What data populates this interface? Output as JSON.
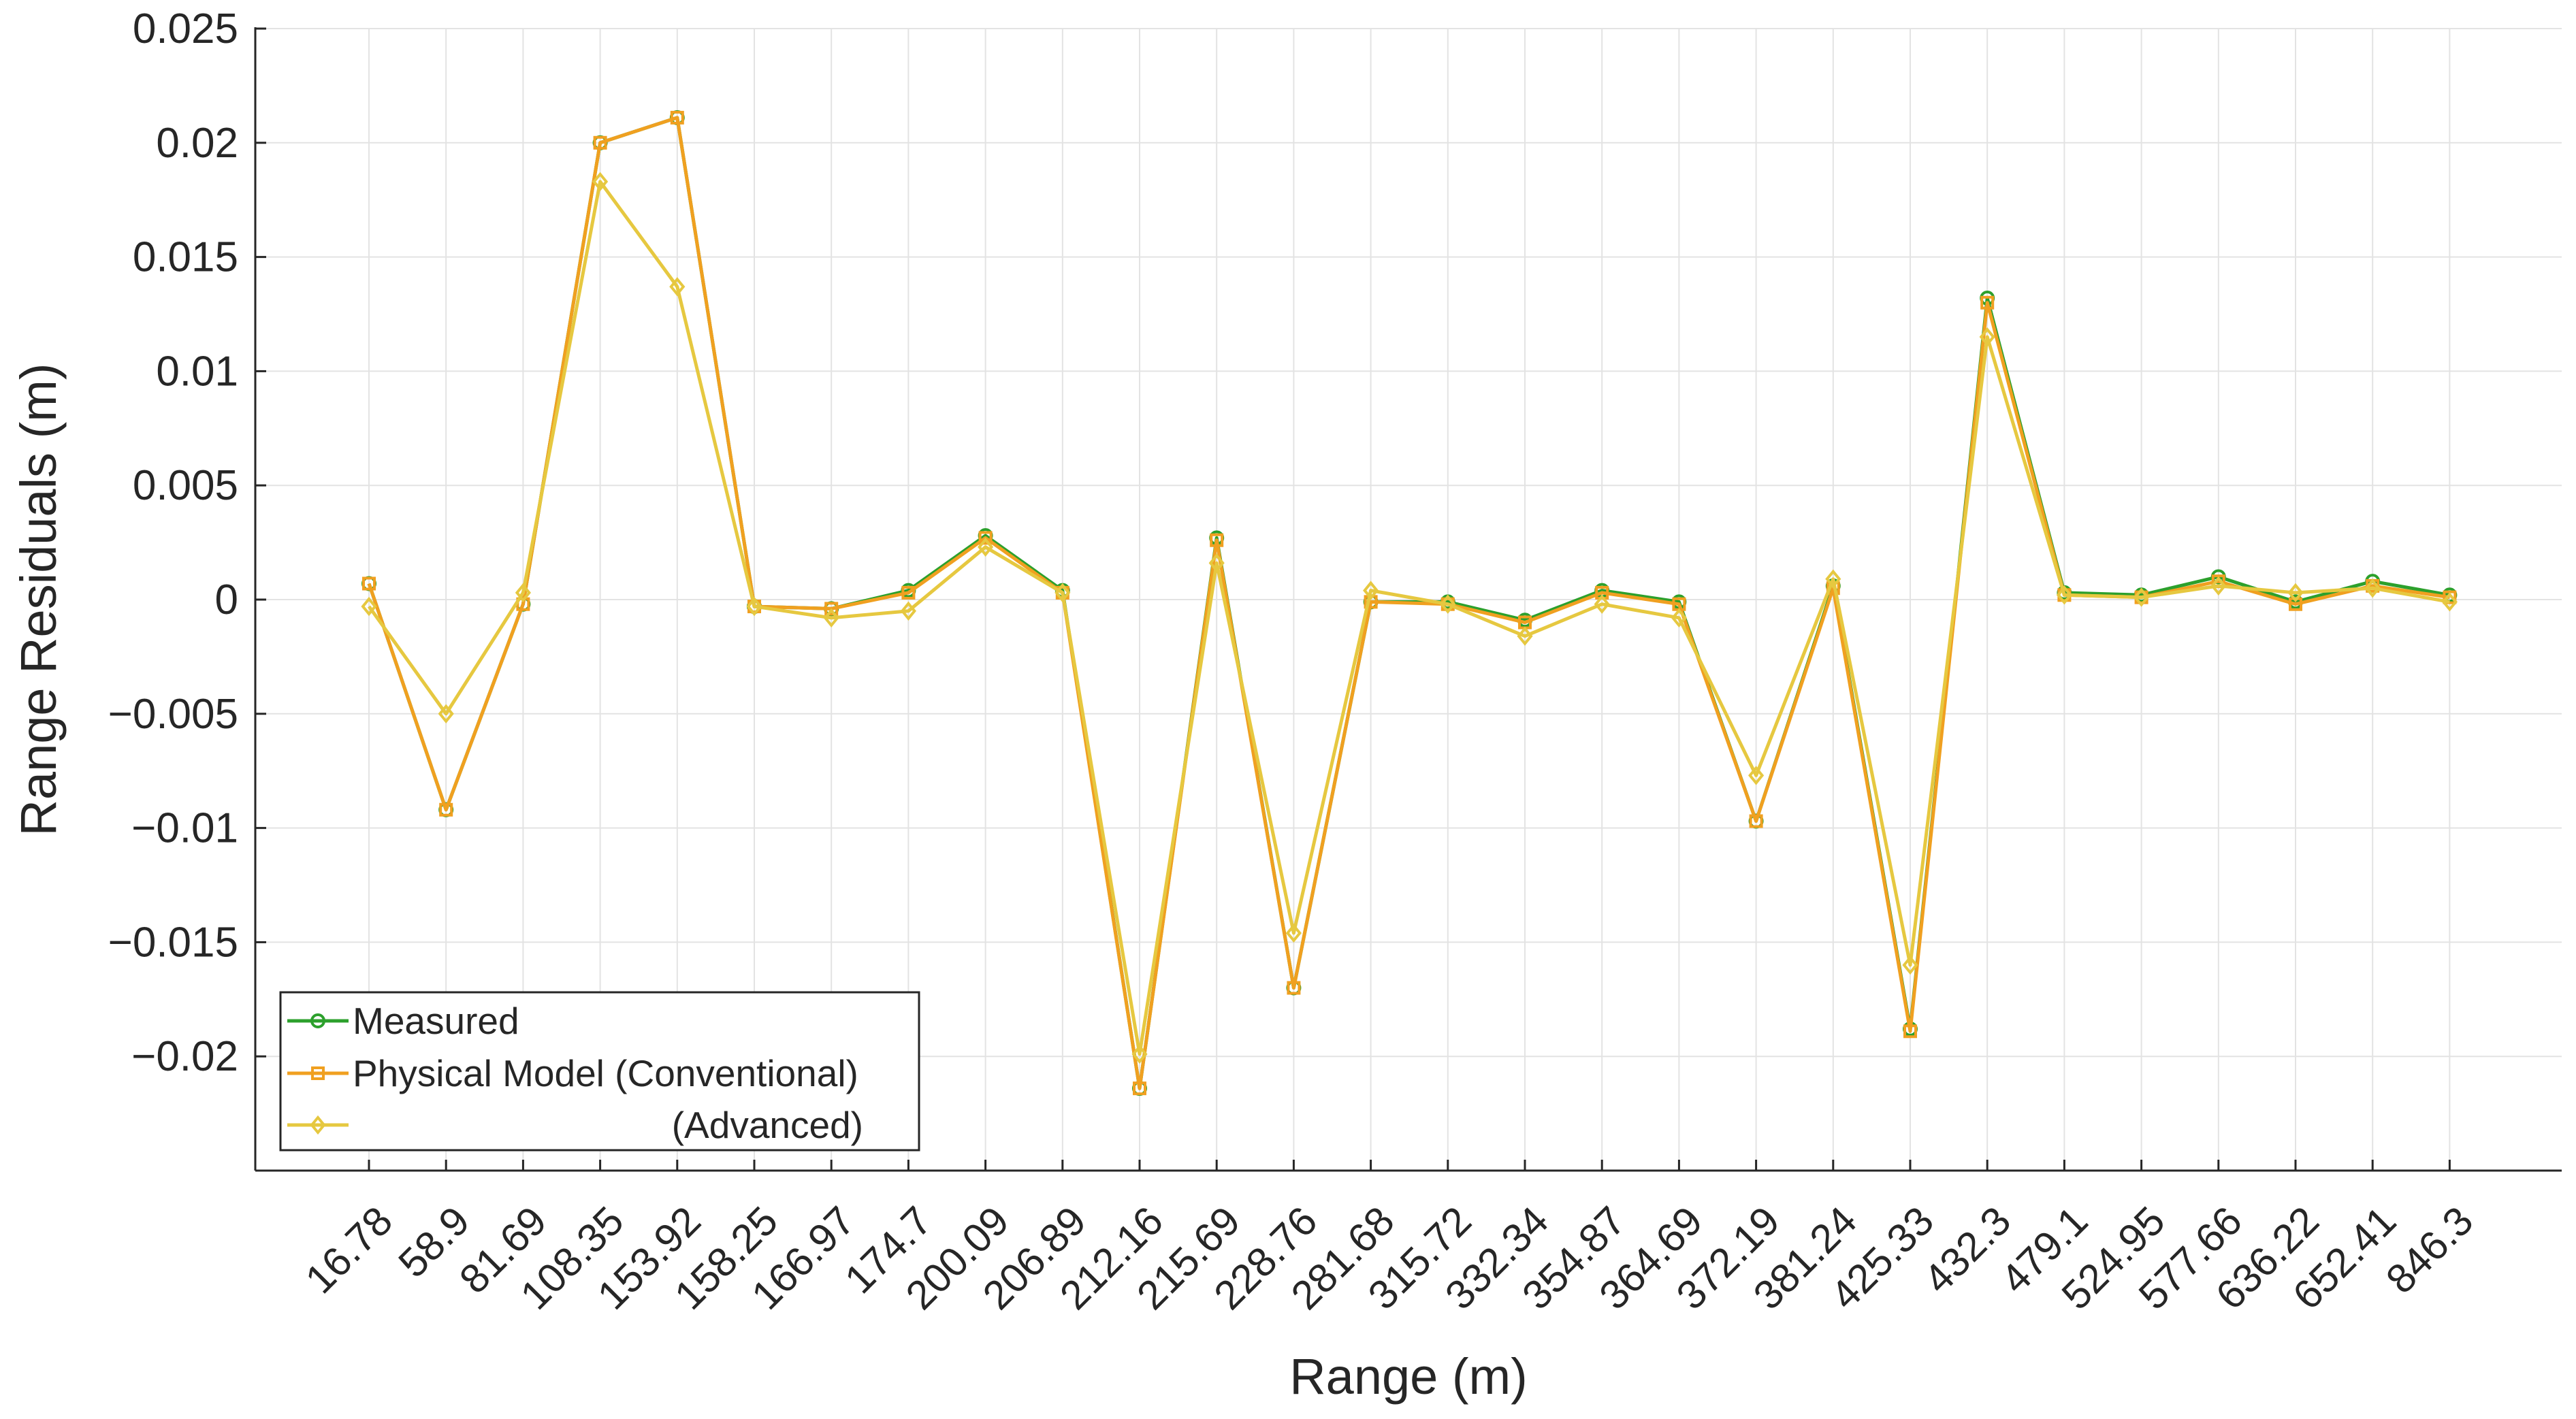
{
  "chart_data": {
    "type": "line",
    "xlabel": "Range (m)",
    "ylabel": "Range Residuals (m)",
    "ylim": [
      -0.025,
      0.025
    ],
    "yticks": [
      -0.02,
      -0.015,
      -0.01,
      -0.005,
      0,
      0.005,
      0.01,
      0.015,
      0.02,
      0.025
    ],
    "ytick_labels": [
      "−0.02",
      "−0.015",
      "−0.01",
      "−0.005",
      "0",
      "0.005",
      "0.01",
      "0.015",
      "0.02",
      "0.025"
    ],
    "grid": true,
    "legend_position": "bottom-left",
    "categories": [
      "16.78",
      "58.9",
      "81.69",
      "108.35",
      "153.92",
      "158.25",
      "166.97",
      "174.7",
      "200.09",
      "206.89",
      "212.16",
      "215.69",
      "228.76",
      "281.68",
      "315.72",
      "332.34",
      "354.87",
      "364.69",
      "372.19",
      "381.24",
      "425.33",
      "432.3",
      "479.1",
      "524.95",
      "577.66",
      "636.22",
      "652.41",
      "846.3"
    ],
    "series": [
      {
        "name": "Measured",
        "color": "#2ca02c",
        "marker": "circle",
        "values": [
          0.0007,
          -0.0092,
          -0.0002,
          0.02,
          0.0211,
          -0.0003,
          -0.0004,
          0.0004,
          0.0028,
          0.0004,
          -0.0214,
          0.0027,
          -0.017,
          -0.0001,
          -0.0001,
          -0.0009,
          0.0004,
          -0.0001,
          -0.0097,
          0.0006,
          -0.0188,
          0.0132,
          0.0003,
          0.0002,
          0.001,
          -0.0001,
          0.0008,
          0.0002
        ]
      },
      {
        "name": "Physical Model (Conventional)",
        "color": "#f0a020",
        "marker": "square",
        "values": [
          0.0007,
          -0.0092,
          -0.0002,
          0.02,
          0.0211,
          -0.0003,
          -0.0004,
          0.0003,
          0.0027,
          0.0003,
          -0.0214,
          0.0026,
          -0.017,
          -0.0001,
          -0.0002,
          -0.001,
          0.0003,
          -0.0002,
          -0.0097,
          0.0005,
          -0.0189,
          0.013,
          0.0002,
          0.0001,
          0.0008,
          -0.0002,
          0.0006,
          0.0001
        ]
      },
      {
        "name": "(Advanced)",
        "color": "#e6c840",
        "marker": "diamond",
        "values": [
          -0.0003,
          -0.005,
          0.0003,
          0.0183,
          0.0137,
          -0.0003,
          -0.0008,
          -0.0005,
          0.0023,
          0.0003,
          -0.0199,
          0.0016,
          -0.0146,
          0.0004,
          -0.0002,
          -0.0016,
          -0.0002,
          -0.0008,
          -0.0077,
          0.0009,
          -0.016,
          0.0115,
          0.0002,
          0.0001,
          0.0006,
          0.0003,
          0.0005,
          -0.0001
        ]
      }
    ]
  }
}
